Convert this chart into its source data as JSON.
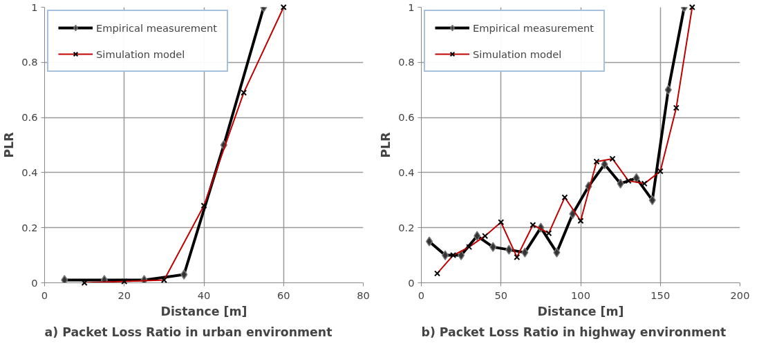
{
  "chart_data": [
    {
      "type": "line",
      "title": "a)    Packet Loss Ratio in urban environment",
      "xlabel": "Distance [m]",
      "ylabel": "PLR",
      "xlim": [
        0,
        80
      ],
      "xticks": [
        0,
        20,
        40,
        60,
        80
      ],
      "ylim": [
        0,
        1
      ],
      "yticks": [
        0,
        0.2,
        0.4,
        0.6,
        0.8,
        1
      ],
      "grid": true,
      "legend": "top left",
      "series": [
        {
          "name": "Empirical measurement",
          "color": "#000000",
          "marker": "diamond",
          "x": [
            5,
            15,
            25,
            35,
            45,
            55
          ],
          "values": [
            0.01,
            0.01,
            0.01,
            0.03,
            0.5,
            1
          ]
        },
        {
          "name": "Simulation model",
          "color": "#c00000",
          "marker": "cross",
          "x": [
            10,
            20,
            30,
            40,
            50,
            60
          ],
          "values": [
            0,
            0.005,
            0.01,
            0.28,
            0.69,
            1
          ]
        }
      ]
    },
    {
      "type": "line",
      "title": "b)    Packet Loss Ratio in highway environment",
      "xlabel": "Distance [m]",
      "ylabel": "PLR",
      "xlim": [
        0,
        200
      ],
      "xticks": [
        0,
        50,
        100,
        150,
        200
      ],
      "ylim": [
        0,
        1
      ],
      "yticks": [
        0,
        0.2,
        0.4,
        0.6,
        0.8,
        1
      ],
      "grid": true,
      "legend": "top left",
      "series": [
        {
          "name": "Empirical measurement",
          "color": "#000000",
          "marker": "diamond",
          "x": [
            5,
            15,
            25,
            35,
            45,
            55,
            65,
            75,
            85,
            95,
            105,
            115,
            125,
            135,
            145,
            155,
            165
          ],
          "values": [
            0.15,
            0.1,
            0.1,
            0.17,
            0.13,
            0.12,
            0.11,
            0.2,
            0.11,
            0.25,
            0.35,
            0.43,
            0.36,
            0.38,
            0.3,
            0.7,
            1
          ]
        },
        {
          "name": "Simulation model",
          "color": "#c00000",
          "marker": "cross",
          "x": [
            10,
            20,
            30,
            40,
            50,
            60,
            70,
            80,
            90,
            100,
            110,
            120,
            130,
            140,
            150,
            160,
            170
          ],
          "values": [
            0.034,
            0.1,
            0.13,
            0.17,
            0.22,
            0.093,
            0.21,
            0.18,
            0.31,
            0.225,
            0.44,
            0.45,
            0.37,
            0.36,
            0.405,
            0.635,
            1
          ]
        }
      ]
    }
  ]
}
